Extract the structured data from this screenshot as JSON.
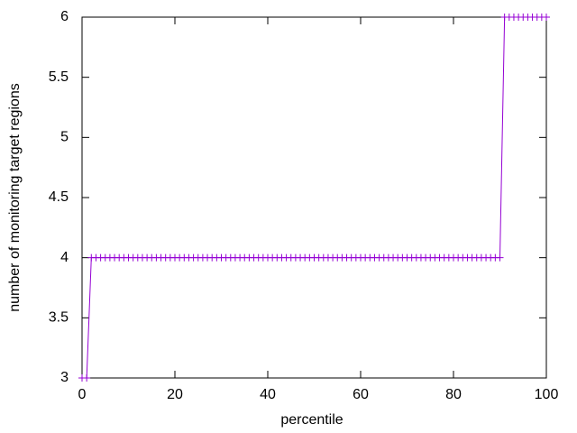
{
  "chart_data": {
    "type": "line",
    "xlabel": "percentile",
    "ylabel": "number of monitoring target regions",
    "x": [
      0,
      1,
      2,
      3,
      4,
      5,
      6,
      7,
      8,
      9,
      10,
      11,
      12,
      13,
      14,
      15,
      16,
      17,
      18,
      19,
      20,
      21,
      22,
      23,
      24,
      25,
      26,
      27,
      28,
      29,
      30,
      31,
      32,
      33,
      34,
      35,
      36,
      37,
      38,
      39,
      40,
      41,
      42,
      43,
      44,
      45,
      46,
      47,
      48,
      49,
      50,
      51,
      52,
      53,
      54,
      55,
      56,
      57,
      58,
      59,
      60,
      61,
      62,
      63,
      64,
      65,
      66,
      67,
      68,
      69,
      70,
      71,
      72,
      73,
      74,
      75,
      76,
      77,
      78,
      79,
      80,
      81,
      82,
      83,
      84,
      85,
      86,
      87,
      88,
      89,
      90,
      91,
      92,
      93,
      94,
      95,
      96,
      97,
      98,
      99,
      100
    ],
    "series": [
      {
        "color": "#9400d3",
        "marker": "+",
        "values": [
          3,
          3,
          4,
          4,
          4,
          4,
          4,
          4,
          4,
          4,
          4,
          4,
          4,
          4,
          4,
          4,
          4,
          4,
          4,
          4,
          4,
          4,
          4,
          4,
          4,
          4,
          4,
          4,
          4,
          4,
          4,
          4,
          4,
          4,
          4,
          4,
          4,
          4,
          4,
          4,
          4,
          4,
          4,
          4,
          4,
          4,
          4,
          4,
          4,
          4,
          4,
          4,
          4,
          4,
          4,
          4,
          4,
          4,
          4,
          4,
          4,
          4,
          4,
          4,
          4,
          4,
          4,
          4,
          4,
          4,
          4,
          4,
          4,
          4,
          4,
          4,
          4,
          4,
          4,
          4,
          4,
          4,
          4,
          4,
          4,
          4,
          4,
          4,
          4,
          4,
          4,
          6,
          6,
          6,
          6,
          6,
          6,
          6,
          6,
          6,
          6
        ]
      }
    ],
    "xlim": [
      0,
      100
    ],
    "xticks": [
      0,
      20,
      40,
      60,
      80,
      100
    ],
    "ylim": [
      3,
      6
    ],
    "yticks": [
      3,
      3.5,
      4,
      4.5,
      5,
      5.5,
      6
    ],
    "grid": false
  }
}
